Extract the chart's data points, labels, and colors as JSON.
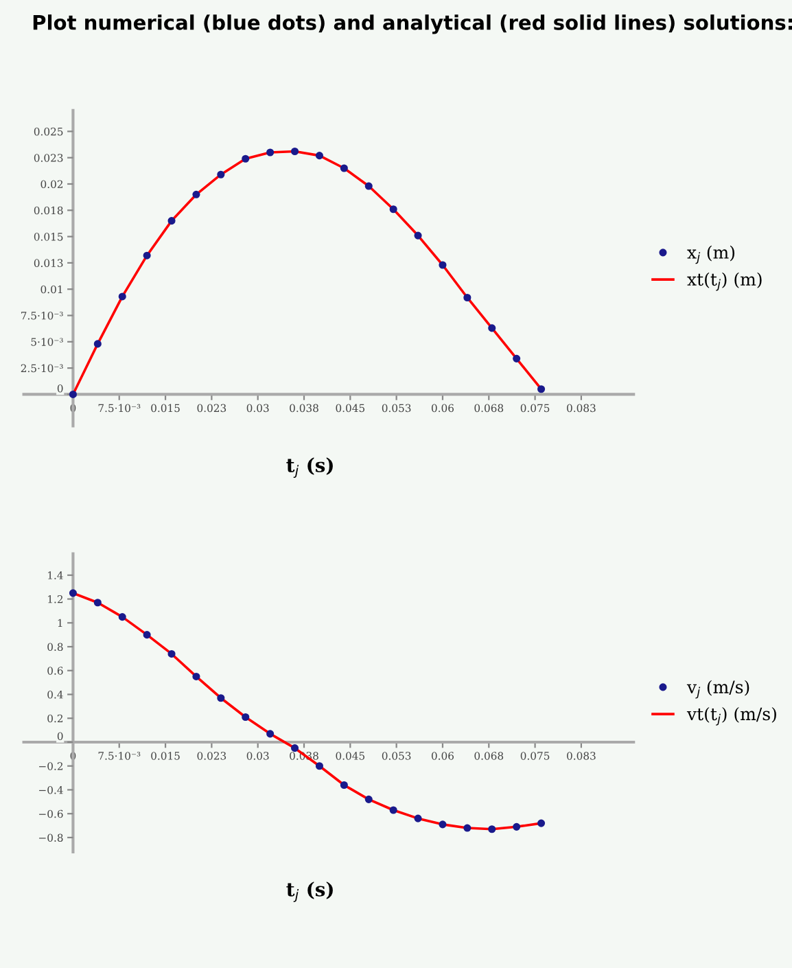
{
  "chart_data": [
    {
      "type": "line",
      "title": "Plot numerical (blue dots) and analytical (red solid lines) solutions:",
      "xlabel": "t$_{j}$ (s)",
      "x": [
        0,
        0.004,
        0.008,
        0.012,
        0.016,
        0.02,
        0.024,
        0.028,
        0.032,
        0.036,
        0.04,
        0.044,
        0.048,
        0.052,
        0.056,
        0.06,
        0.064,
        0.068,
        0.072,
        0.076
      ],
      "series": [
        {
          "name": "x$_{j}$ (m)",
          "type": "scatter",
          "marker": "circle",
          "color": "#1a1a8c",
          "values": [
            0,
            0.0048,
            0.0093,
            0.0132,
            0.0165,
            0.019,
            0.0209,
            0.0224,
            0.023,
            0.0231,
            0.0227,
            0.0215,
            0.0198,
            0.0176,
            0.0151,
            0.0123,
            0.0092,
            0.0063,
            0.0034,
            0.0005
          ]
        },
        {
          "name": "xt(t$_{j}$) (m)",
          "color": "#ff0000",
          "values": [
            0,
            0.0048,
            0.0093,
            0.0132,
            0.0165,
            0.019,
            0.0209,
            0.0224,
            0.023,
            0.0231,
            0.0227,
            0.0215,
            0.0198,
            0.0176,
            0.0151,
            0.0123,
            0.0092,
            0.0063,
            0.0034,
            0.0005
          ]
        }
      ],
      "xlim": [
        -0.008,
        0.091
      ],
      "ylim": [
        -0.003,
        0.027
      ],
      "xticks": [
        0,
        {
          "value": 0.0075,
          "label": "7.5·10⁻³"
        },
        0.015,
        {
          "value": 0.0225,
          "label": "0.023"
        },
        0.03,
        {
          "value": 0.0375,
          "label": "0.038"
        },
        0.045,
        {
          "value": 0.0525,
          "label": "0.053"
        },
        0.06,
        {
          "value": 0.0675,
          "label": "0.068"
        },
        0.075,
        {
          "value": 0.0825,
          "label": "0.083"
        }
      ],
      "yticks": [
        0,
        {
          "value": 0.0025,
          "label": "2.5·10⁻³"
        },
        {
          "value": 0.005,
          "label": "5·10⁻³"
        },
        {
          "value": 0.0075,
          "label": "7.5·10⁻³"
        },
        0.01,
        {
          "value": 0.0125,
          "label": "0.013"
        },
        0.015,
        {
          "value": 0.0175,
          "label": "0.018"
        },
        0.02,
        {
          "value": 0.0225,
          "label": "0.023"
        },
        0.025
      ],
      "legend": "right",
      "grid": false
    },
    {
      "type": "line",
      "xlabel": "t$_{j}$ (s)",
      "x": [
        0,
        0.004,
        0.008,
        0.012,
        0.016,
        0.02,
        0.024,
        0.028,
        0.032,
        0.036,
        0.04,
        0.044,
        0.048,
        0.052,
        0.056,
        0.06,
        0.064,
        0.068,
        0.072,
        0.076
      ],
      "series": [
        {
          "name": "v$_{j}$ (m/s)",
          "type": "scatter",
          "marker": "circle",
          "color": "#1a1a8c",
          "values": [
            1.25,
            1.17,
            1.05,
            0.9,
            0.74,
            0.55,
            0.37,
            0.21,
            0.07,
            -0.05,
            -0.2,
            -0.36,
            -0.48,
            -0.57,
            -0.64,
            -0.69,
            -0.72,
            -0.73,
            -0.71,
            -0.68
          ]
        },
        {
          "name": "vt(t$_{j}$) (m/s)",
          "color": "#ff0000",
          "values": [
            1.25,
            1.17,
            1.05,
            0.9,
            0.74,
            0.55,
            0.37,
            0.21,
            0.07,
            -0.05,
            -0.2,
            -0.36,
            -0.48,
            -0.57,
            -0.64,
            -0.69,
            -0.72,
            -0.73,
            -0.71,
            -0.68
          ]
        }
      ],
      "xlim": [
        -0.008,
        0.091
      ],
      "ylim": [
        -0.92,
        1.58
      ],
      "xticks": [
        0,
        {
          "value": 0.0075,
          "label": "7.5·10⁻³"
        },
        0.015,
        {
          "value": 0.0225,
          "label": "0.023"
        },
        0.03,
        {
          "value": 0.0375,
          "label": "0.038"
        },
        0.045,
        {
          "value": 0.0525,
          "label": "0.053"
        },
        0.06,
        {
          "value": 0.0675,
          "label": "0.068"
        },
        0.075,
        {
          "value": 0.0825,
          "label": "0.083"
        }
      ],
      "yticks": [
        {
          "value": -0.8,
          "label": "−0.8"
        },
        {
          "value": -0.6,
          "label": "−0.6"
        },
        {
          "value": -0.4,
          "label": "−0.4"
        },
        {
          "value": -0.2,
          "label": "−0.2"
        },
        0,
        0.2,
        0.4,
        0.6,
        0.8,
        1,
        1.2,
        1.4
      ],
      "legend": "right",
      "grid": false
    }
  ]
}
